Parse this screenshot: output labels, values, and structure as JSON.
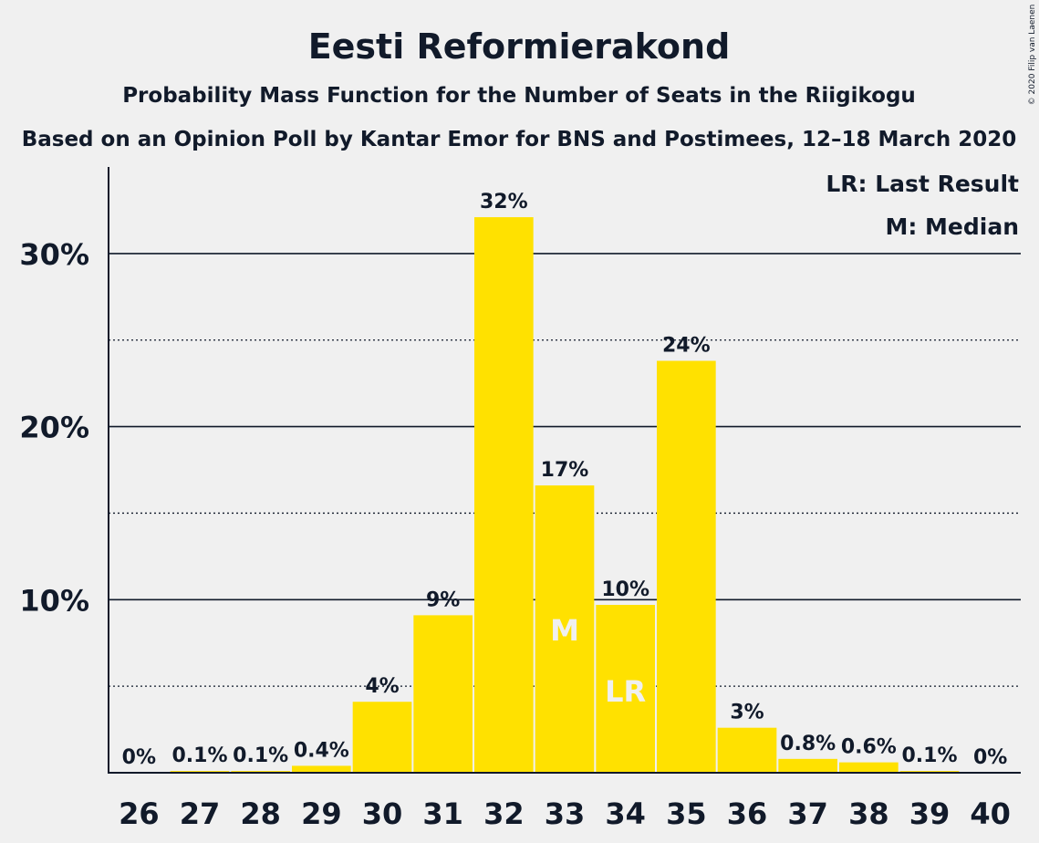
{
  "chart_data": {
    "type": "bar",
    "title": "Eesti Reformierakond",
    "subtitle": "Probability Mass Function for the Number of Seats in the Riigikogu",
    "subtitle2": "Based on an Opinion Poll by Kantar Emor for BNS and Postimees, 12–18 March 2020",
    "copyright": "© 2020 Filip van Laenen",
    "categories": [
      "26",
      "27",
      "28",
      "29",
      "30",
      "31",
      "32",
      "33",
      "34",
      "35",
      "36",
      "37",
      "38",
      "39",
      "40"
    ],
    "values": [
      0,
      0.1,
      0.1,
      0.4,
      4.1,
      9.1,
      32.1,
      16.6,
      9.7,
      23.8,
      2.6,
      0.8,
      0.6,
      0.1,
      0
    ],
    "data_labels": [
      "0%",
      "0.1%",
      "0.1%",
      "0.4%",
      "4%",
      "9%",
      "32%",
      "17%",
      "10%",
      "24%",
      "3%",
      "0.8%",
      "0.6%",
      "0.1%",
      "0%"
    ],
    "ylim": [
      0,
      35
    ],
    "yticks": [
      {
        "value": 10,
        "label": "10%"
      },
      {
        "value": 20,
        "label": "20%"
      },
      {
        "value": 30,
        "label": "30%"
      }
    ],
    "minor_gridlines": [
      5,
      15,
      25
    ],
    "median": {
      "category": "33",
      "label": "M"
    },
    "last_result": {
      "category": "34",
      "label": "LR"
    },
    "legend": {
      "placement": "top-right",
      "entries": [
        "LR: Last Result",
        "M: Median"
      ]
    },
    "colors": {
      "bar": "#ffe100",
      "text": "#111a2a",
      "background": "#f0f0f0"
    }
  }
}
